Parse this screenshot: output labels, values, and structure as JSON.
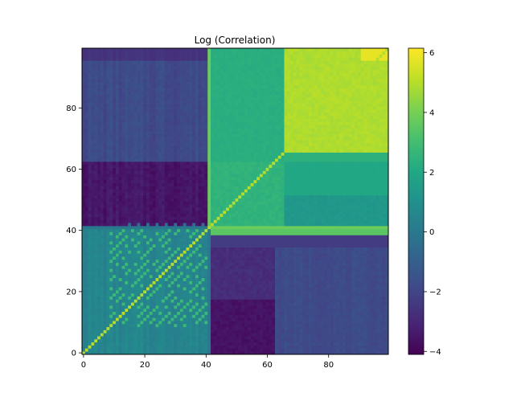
{
  "chart_data": {
    "type": "heatmap",
    "title": "Log (Correlation)",
    "xlabel": "",
    "ylabel": "",
    "n": 100,
    "xlim": [
      0,
      99
    ],
    "ylim": [
      0,
      99
    ],
    "x_ticks": [
      0,
      20,
      40,
      60,
      80
    ],
    "y_ticks": [
      0,
      20,
      40,
      60,
      80
    ],
    "colorbar": {
      "vmin": -4.1,
      "vmax": 6.15,
      "ticks": [
        -4,
        -2,
        0,
        2,
        4,
        6
      ],
      "tick_labels": [
        "−4",
        "−2",
        "0",
        "2",
        "4",
        "6"
      ],
      "colormap": "viridis"
    },
    "block_values_approx": [
      {
        "rows": "0-41",
        "cols": "0-41",
        "value": 0.5
      },
      {
        "rows": "42-62",
        "cols": "0-40",
        "value": -3.5
      },
      {
        "rows": "42-62",
        "cols": "42-99",
        "value": 2.5
      },
      {
        "rows": "63-99",
        "cols": "0-40",
        "value": -1.8
      },
      {
        "rows": "0-38",
        "cols": "42-99",
        "value": -2.8
      },
      {
        "rows": "66-99",
        "cols": "42-65",
        "value": 2.3
      },
      {
        "rows": "66-99",
        "cols": "66-99",
        "value": 4.9
      },
      {
        "rows": "diagonal",
        "cols": "diagonal",
        "value": 5.0
      }
    ]
  }
}
